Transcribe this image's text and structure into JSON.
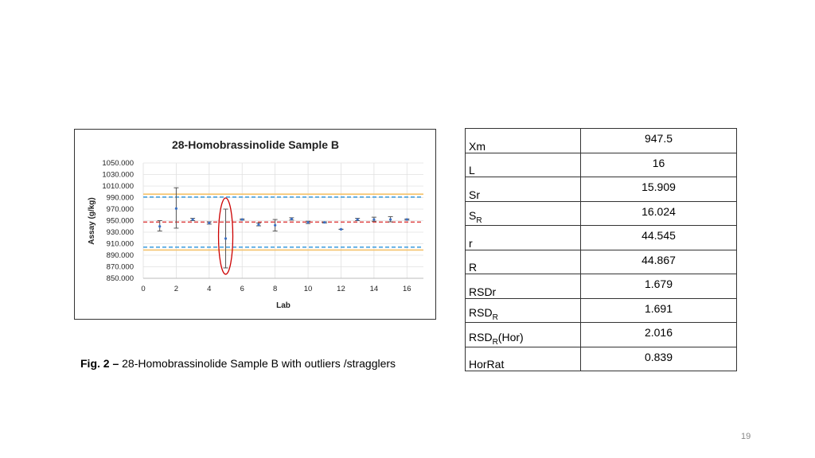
{
  "chart_data": {
    "type": "scatter",
    "title": "28-Homobrassinolide Sample B",
    "xlabel": "Lab",
    "ylabel": "Assay (g/kg)",
    "xlim": [
      0,
      17
    ],
    "ylim": [
      850,
      1050
    ],
    "xticks": [
      "0",
      "2",
      "4",
      "6",
      "8",
      "10",
      "12",
      "14",
      "16"
    ],
    "yticks": [
      "850.000",
      "870.000",
      "890.000",
      "910.000",
      "930.000",
      "950.000",
      "970.000",
      "990.000",
      "1010.000",
      "1030.000",
      "1050.000"
    ],
    "grid": "on",
    "points": [
      {
        "x": 1,
        "y": 940,
        "low": 932,
        "high": 950
      },
      {
        "x": 2,
        "y": 971,
        "low": 937,
        "high": 1007
      },
      {
        "x": 3,
        "y": 952,
        "low": 950,
        "high": 954
      },
      {
        "x": 4,
        "y": 946,
        "low": 944,
        "high": 948
      },
      {
        "x": 5,
        "y": 919,
        "low": 868,
        "high": 970
      },
      {
        "x": 6,
        "y": 952,
        "low": 951,
        "high": 953
      },
      {
        "x": 7,
        "y": 943,
        "low": 941,
        "high": 946
      },
      {
        "x": 8,
        "y": 942,
        "low": 932,
        "high": 952
      },
      {
        "x": 9,
        "y": 953,
        "low": 951,
        "high": 955
      },
      {
        "x": 10,
        "y": 947,
        "low": 945,
        "high": 949
      },
      {
        "x": 11,
        "y": 947,
        "low": 946,
        "high": 948
      },
      {
        "x": 12,
        "y": 935,
        "low": 935,
        "high": 935
      },
      {
        "x": 13,
        "y": 952,
        "low": 950,
        "high": 954
      },
      {
        "x": 14,
        "y": 952,
        "low": 949,
        "high": 956
      },
      {
        "x": 15,
        "y": 952,
        "low": 948,
        "high": 957
      },
      {
        "x": 16,
        "y": 952,
        "low": 951,
        "high": 953
      }
    ],
    "reference_lines": [
      {
        "y": 996,
        "color": "#f5c26b",
        "style": "solid"
      },
      {
        "y": 991,
        "color": "#4aa3df",
        "style": "dashed"
      },
      {
        "y": 947.5,
        "color": "#e05050",
        "style": "dashed"
      },
      {
        "y": 904,
        "color": "#4aa3df",
        "style": "dashed"
      },
      {
        "y": 899,
        "color": "#f5c26b",
        "style": "solid"
      }
    ],
    "highlight": {
      "x": 5,
      "color": "#cc0000"
    },
    "colors": {
      "point": "#3a6fc4",
      "errorbar": "#555555",
      "grid": "#e0e0e0"
    }
  },
  "stats": [
    {
      "label": "Xm",
      "sub": "",
      "suffix": "",
      "value": "947.5"
    },
    {
      "label": "L",
      "sub": "",
      "suffix": "",
      "value": "16"
    },
    {
      "label": "Sr",
      "sub": "",
      "suffix": "",
      "value": "15.909"
    },
    {
      "label": "S",
      "sub": "R",
      "suffix": "",
      "value": "16.024"
    },
    {
      "label": "r",
      "sub": "",
      "suffix": "",
      "value": "44.545"
    },
    {
      "label": "R",
      "sub": "",
      "suffix": "",
      "value": "44.867"
    },
    {
      "label": "RSDr",
      "sub": "",
      "suffix": "",
      "value": "1.679"
    },
    {
      "label": "RSD",
      "sub": "R",
      "suffix": "",
      "value": "1.691"
    },
    {
      "label": "RSD",
      "sub": "R",
      "suffix": "(Hor)",
      "value": "2.016"
    },
    {
      "label": "HorRat",
      "sub": "",
      "suffix": "",
      "value": "0.839"
    }
  ],
  "caption": {
    "prefix": "Fig. 2 –",
    "text": " 28-Homobrassinolide Sample B with outliers /stragglers"
  },
  "page_number": "19"
}
